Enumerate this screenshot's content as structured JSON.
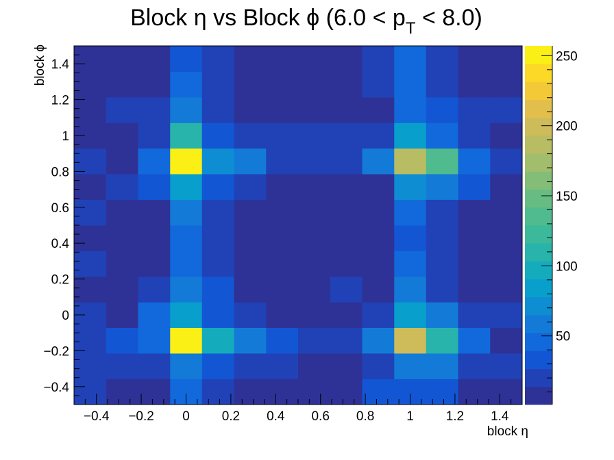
{
  "chart_data": {
    "type": "heatmap",
    "title": {
      "main": "Block η vs Block ϕ (6.0 < p",
      "sub": "T",
      "tail": " < 8.0)"
    },
    "xlabel": "block η",
    "ylabel": "block ϕ",
    "x_edges": [
      -0.5,
      -0.357,
      -0.214,
      -0.071,
      0.071,
      0.214,
      0.357,
      0.5,
      0.643,
      0.786,
      0.929,
      1.071,
      1.214,
      1.357,
      1.5
    ],
    "y_edges": [
      -0.5,
      -0.357,
      -0.214,
      -0.071,
      0.071,
      0.214,
      0.357,
      0.5,
      0.643,
      0.786,
      0.929,
      1.071,
      1.214,
      1.357,
      1.5
    ],
    "xlim": [
      -0.5,
      1.5
    ],
    "ylim": [
      -0.5,
      1.5
    ],
    "x_ticks": [
      "−0.4",
      "−0.2",
      "0",
      "0.2",
      "0.4",
      "0.6",
      "0.8",
      "1",
      "1.2",
      "1.4"
    ],
    "x_tick_values": [
      -0.4,
      -0.2,
      0,
      0.2,
      0.4,
      0.6,
      0.8,
      1,
      1.2,
      1.4
    ],
    "y_ticks": [
      "−0.4",
      "−0.2",
      "0",
      "0.2",
      "0.4",
      "0.6",
      "0.8",
      "1",
      "1.2",
      "1.4"
    ],
    "y_tick_values": [
      -0.4,
      -0.2,
      0,
      0.2,
      0.4,
      0.6,
      0.8,
      1,
      1.2,
      1.4
    ],
    "z_range": [
      1,
      257
    ],
    "z_ticks": [
      "50",
      "100",
      "150",
      "200",
      "250"
    ],
    "z_tick_values": [
      50,
      100,
      150,
      200,
      250
    ],
    "palette": "parula",
    "values": [
      [
        25,
        5,
        5,
        50,
        20,
        5,
        5,
        5,
        5,
        30,
        30,
        30,
        5,
        5
      ],
      [
        25,
        25,
        20,
        60,
        35,
        15,
        15,
        5,
        5,
        20,
        60,
        55,
        20,
        20
      ],
      [
        25,
        35,
        45,
        255,
        100,
        55,
        35,
        25,
        25,
        55,
        195,
        105,
        40,
        5
      ],
      [
        25,
        5,
        40,
        80,
        35,
        20,
        5,
        5,
        5,
        25,
        90,
        55,
        20,
        20
      ],
      [
        5,
        5,
        20,
        60,
        30,
        5,
        5,
        5,
        20,
        5,
        60,
        25,
        5,
        5
      ],
      [
        25,
        5,
        5,
        50,
        25,
        5,
        5,
        5,
        5,
        5,
        40,
        25,
        5,
        5
      ],
      [
        5,
        5,
        5,
        45,
        20,
        5,
        5,
        5,
        5,
        5,
        35,
        25,
        5,
        5
      ],
      [
        25,
        5,
        5,
        55,
        20,
        5,
        5,
        5,
        5,
        5,
        45,
        25,
        5,
        5
      ],
      [
        5,
        20,
        35,
        85,
        35,
        20,
        5,
        5,
        5,
        5,
        70,
        55,
        35,
        5
      ],
      [
        25,
        5,
        50,
        255,
        75,
        55,
        20,
        20,
        20,
        55,
        185,
        135,
        50,
        20
      ],
      [
        5,
        5,
        20,
        115,
        35,
        20,
        20,
        20,
        20,
        20,
        85,
        50,
        20,
        5
      ],
      [
        5,
        20,
        20,
        55,
        20,
        5,
        5,
        5,
        5,
        5,
        50,
        35,
        20,
        20
      ],
      [
        5,
        5,
        5,
        40,
        20,
        5,
        5,
        5,
        5,
        20,
        45,
        20,
        5,
        5
      ],
      [
        5,
        5,
        5,
        35,
        20,
        5,
        5,
        5,
        5,
        20,
        45,
        20,
        5,
        5
      ]
    ]
  }
}
